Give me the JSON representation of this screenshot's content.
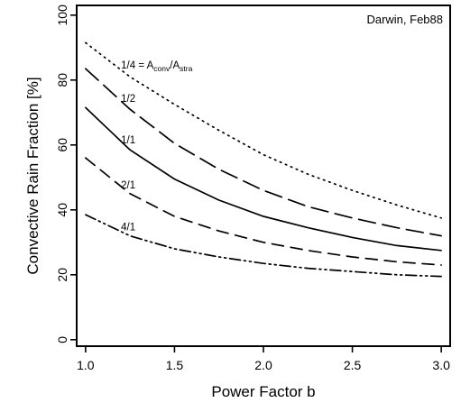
{
  "chart_data": {
    "type": "line",
    "title": "",
    "annotation": "Darwin, Feb88",
    "xlabel": "Power Factor b",
    "ylabel": "Convective Rain Fraction [%]",
    "xlim": [
      0.95,
      3.05
    ],
    "ylim": [
      -2,
      103
    ],
    "x_ticks": [
      1.0,
      1.5,
      2.0,
      2.5,
      3.0
    ],
    "x_tick_labels": [
      "1.0",
      "1.5",
      "2.0",
      "2.5",
      "3.0"
    ],
    "y_ticks": [
      0,
      20,
      40,
      60,
      80,
      100
    ],
    "y_tick_labels": [
      "0",
      "20",
      "40",
      "60",
      "80",
      "100"
    ],
    "grid": false,
    "x": [
      1.0,
      1.25,
      1.5,
      1.75,
      2.0,
      2.25,
      2.5,
      2.75,
      3.0
    ],
    "series": [
      {
        "name": "1/4",
        "label": "1/4 = A",
        "label_sub1": "conv",
        "label_mid": "/A",
        "label_sub2": "stra",
        "dash": "dotted",
        "values": [
          91.5,
          81,
          72.5,
          64.5,
          57,
          51,
          46,
          41.5,
          37.5
        ]
      },
      {
        "name": "1/2",
        "label": "1/2",
        "dash": "longdash",
        "values": [
          83.5,
          71,
          60.5,
          52.5,
          46,
          41,
          37.5,
          34.5,
          32
        ]
      },
      {
        "name": "1/1",
        "label": "1/1",
        "dash": "solid",
        "values": [
          71.5,
          58.5,
          49.5,
          43,
          38,
          34.5,
          31.5,
          29,
          27.5
        ]
      },
      {
        "name": "2/1",
        "label": "2/1",
        "dash": "dashed",
        "values": [
          56,
          45,
          38,
          33.5,
          30,
          27.5,
          25.5,
          24,
          23
        ]
      },
      {
        "name": "4/1",
        "label": "4/1",
        "dash": "dashdot",
        "values": [
          38.5,
          32,
          28,
          25.5,
          23.5,
          22,
          21,
          20,
          19.5
        ]
      }
    ]
  }
}
